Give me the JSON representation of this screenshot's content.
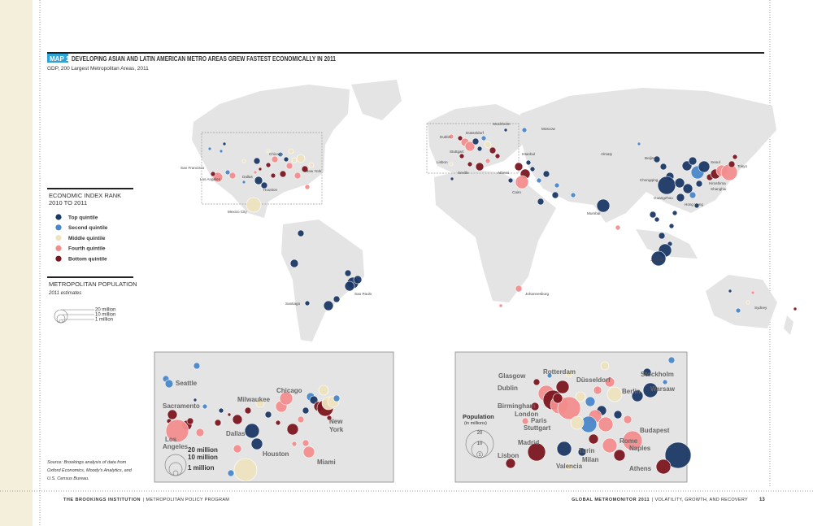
{
  "header": {
    "map_tag": "MAP 1",
    "title": "DEVELOPING ASIAN AND LATIN AMERICAN METRO AREAS GREW FASTEST ECONOMICALLY IN 2011",
    "subtitle": "GDP, 200 Largest Metropolitan Areas, 2011"
  },
  "legend": {
    "title_line1": "ECONOMIC INDEX RANK",
    "title_line2": "2010 TO 2011",
    "items": [
      {
        "label": "Top quintile",
        "color": "#1c3866"
      },
      {
        "label": "Second quintile",
        "color": "#4a87c9"
      },
      {
        "label": "Middle quintile",
        "color": "#eee3bf"
      },
      {
        "label": "Fourth quintile",
        "color": "#f28d8d"
      },
      {
        "label": "Bottom quintile",
        "color": "#7b1620"
      }
    ],
    "population_title": "METROPOLITAN POPULATION",
    "population_subtitle": "2011 estimates",
    "population_sizes": [
      "20 million",
      "10 million",
      "1 million"
    ]
  },
  "world_labels": [
    "San Francisco",
    "Los Angeles",
    "Dallas",
    "Chicago",
    "New York",
    "Houston",
    "Mexico City",
    "Santiago",
    "Sao Paulo",
    "Stockholm",
    "Moscow",
    "Dublin",
    "Düsseldorf",
    "Stuttgart",
    "Lisbon",
    "Seville",
    "Istanbul",
    "Athens",
    "Cairo",
    "Almaty",
    "Beijing",
    "Seoul",
    "Tokyo",
    "Chongqing",
    "Hiroshima",
    "Shanghai",
    "Guangzhou",
    "Hong Kong",
    "Mumbai",
    "Jakarta",
    "Johannesburg",
    "Sydney"
  ],
  "us_inset": {
    "labels": [
      "Seattle",
      "Sacramento",
      "Los",
      "Angeles",
      "Milwaukee",
      "Chicago",
      "Dallas",
      "Houston",
      "Miami",
      "New",
      "York"
    ],
    "population_sizes": [
      "20 million",
      "10 million",
      "1 million"
    ]
  },
  "europe_inset": {
    "labels": [
      "Glasgow",
      "Rotterdam",
      "Düsseldorf",
      "Stockholm",
      "Dublin",
      "Warsaw",
      "Berlin",
      "Birmingham",
      "London",
      "Paris",
      "Stuttgart",
      "Budapest",
      "Madrid",
      "Rome",
      "Naples",
      "Turin",
      "Milan",
      "Lisbon",
      "Valencia",
      "Athens"
    ],
    "population_title": "Population",
    "population_unit": "(in millions)",
    "population_sizes": [
      "20",
      "10",
      "1"
    ]
  },
  "source": [
    "Source: Brookings analysis of data from",
    "Oxford Economics, Moody's Analytics, and",
    "U.S. Census Bureau."
  ],
  "footer": {
    "left_bold": "THE BROOKINGS INSTITUTION",
    "left_rest": "| METROPOLITAN POLICY PROGRAM",
    "right_bold": "GLOBAL METROMONITOR 2011",
    "right_rest": "| VOLATILITY, GROWTH, AND RECOVERY",
    "page_number": "13"
  }
}
